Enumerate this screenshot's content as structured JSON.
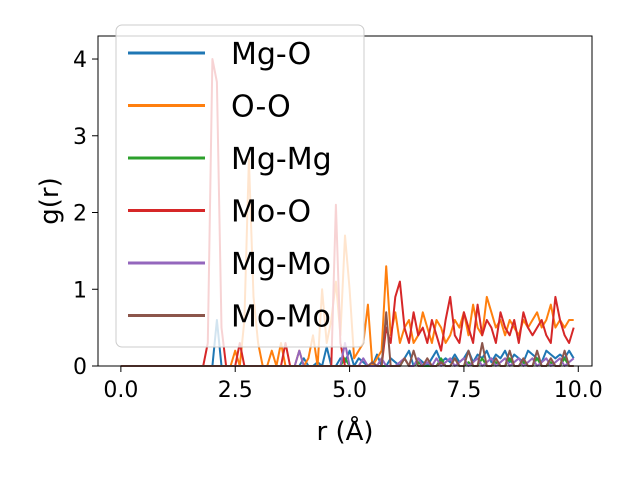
{
  "chart_data": {
    "type": "line",
    "title": "",
    "xlabel": "r (Å)",
    "ylabel": "g(r)",
    "xlim": [
      -0.5,
      10.3
    ],
    "ylim": [
      0,
      4.3
    ],
    "xticks": [
      0.0,
      2.5,
      5.0,
      7.5,
      10.0
    ],
    "xtick_labels": [
      "0.0",
      "2.5",
      "5.0",
      "7.5",
      "10.0"
    ],
    "yticks": [
      0,
      1,
      2,
      3,
      4
    ],
    "ytick_labels": [
      "0",
      "1",
      "2",
      "3",
      "4"
    ],
    "grid": false,
    "legend_position": "upper-left",
    "x": [
      0.0,
      0.1,
      0.2,
      0.3,
      0.4,
      0.5,
      0.6,
      0.7,
      0.8,
      0.9,
      1.0,
      1.1,
      1.2,
      1.3,
      1.4,
      1.5,
      1.6,
      1.7,
      1.8,
      1.9,
      2.0,
      2.1,
      2.2,
      2.3,
      2.4,
      2.5,
      2.6,
      2.7,
      2.8,
      2.9,
      3.0,
      3.1,
      3.2,
      3.3,
      3.4,
      3.5,
      3.6,
      3.7,
      3.8,
      3.9,
      4.0,
      4.1,
      4.2,
      4.3,
      4.4,
      4.5,
      4.6,
      4.7,
      4.8,
      4.9,
      5.0,
      5.1,
      5.2,
      5.3,
      5.4,
      5.5,
      5.6,
      5.7,
      5.8,
      5.9,
      6.0,
      6.1,
      6.2,
      6.3,
      6.4,
      6.5,
      6.6,
      6.7,
      6.8,
      6.9,
      7.0,
      7.1,
      7.2,
      7.3,
      7.4,
      7.5,
      7.6,
      7.7,
      7.8,
      7.9,
      8.0,
      8.1,
      8.2,
      8.3,
      8.4,
      8.5,
      8.6,
      8.7,
      8.8,
      8.9,
      9.0,
      9.1,
      9.2,
      9.3,
      9.4,
      9.5,
      9.6,
      9.7,
      9.8,
      9.9
    ],
    "series": [
      {
        "name": "Mg-O",
        "color": "#1f77b4",
        "values": [
          0,
          0,
          0,
          0,
          0,
          0,
          0,
          0,
          0,
          0,
          0,
          0,
          0,
          0,
          0,
          0,
          0,
          0,
          0,
          0,
          0,
          0.6,
          0,
          0,
          0,
          0,
          0,
          0,
          0,
          0,
          0,
          0,
          0,
          0,
          0,
          0,
          0,
          0,
          0,
          0,
          0.1,
          0,
          0,
          0.05,
          0,
          0.25,
          0,
          0,
          0.1,
          0.05,
          0.2,
          0,
          0.1,
          0.05,
          0,
          0,
          0.15,
          0,
          0,
          0.1,
          0.05,
          0,
          0.1,
          0.2,
          0,
          0.1,
          0.05,
          0,
          0.1,
          0.2,
          0.05,
          0.1,
          0.05,
          0.15,
          0.05,
          0.1,
          0.2,
          0.05,
          0.15,
          0.1,
          0.2,
          0.05,
          0.15,
          0.1,
          0.2,
          0.05,
          0.15,
          0.1,
          0.05,
          0.2,
          0.15,
          0.1,
          0.05,
          0.2,
          0.15,
          0.1,
          0.15,
          0.1,
          0.2,
          0.1
        ]
      },
      {
        "name": "O-O",
        "color": "#ff7f0e",
        "values": [
          0,
          0,
          0,
          0,
          0,
          0,
          0,
          0,
          0,
          0,
          0,
          0,
          0,
          0,
          0,
          0,
          0,
          0,
          0,
          0,
          0,
          0,
          0,
          0,
          0,
          0.2,
          0,
          0.6,
          2.7,
          0.9,
          0.3,
          0,
          0,
          0.2,
          0,
          0.3,
          0,
          0,
          0,
          0.2,
          0,
          0.1,
          0.4,
          0,
          1.0,
          0.3,
          0.6,
          1.1,
          0.4,
          1.7,
          1.0,
          0.1,
          0.2,
          0.3,
          0.8,
          0,
          0.1,
          0.2,
          1.3,
          0.4,
          0.7,
          0.3,
          0.5,
          0.6,
          0.3,
          0.4,
          0.7,
          0.5,
          0.3,
          0.6,
          0.5,
          0.3,
          0.4,
          0.6,
          0.5,
          0.7,
          0.4,
          0.8,
          0.5,
          0.4,
          0.9,
          0.7,
          0.5,
          0.6,
          0.4,
          0.6,
          0.5,
          0.4,
          0.6,
          0.5,
          0.6,
          0.7,
          0.5,
          0.6,
          0.8,
          0.5,
          0.6,
          0.5,
          0.6,
          0.6
        ]
      },
      {
        "name": "Mg-Mg",
        "color": "#2ca02c",
        "values": [
          0,
          0,
          0,
          0,
          0,
          0,
          0,
          0,
          0,
          0,
          0,
          0,
          0,
          0,
          0,
          0,
          0,
          0,
          0,
          0,
          0,
          0,
          0,
          0,
          0,
          0,
          0,
          0,
          0,
          0,
          0,
          0,
          0,
          0,
          0,
          0,
          0,
          0,
          0,
          0,
          0,
          0,
          0,
          0,
          0,
          0,
          0,
          0,
          0,
          0.1,
          0,
          0,
          0,
          0,
          0,
          0,
          0,
          0,
          0,
          0,
          0,
          0,
          0.1,
          0,
          0,
          0.05,
          0,
          0,
          0,
          0,
          0.1,
          0,
          0,
          0.1,
          0,
          0,
          0.05,
          0,
          0,
          0.1,
          0,
          0,
          0.05,
          0,
          0,
          0.1,
          0,
          0,
          0.05,
          0,
          0,
          0.1,
          0,
          0,
          0.05,
          0,
          0,
          0.1,
          0,
          0
        ]
      },
      {
        "name": "Mo-O",
        "color": "#d62728",
        "values": [
          0,
          0,
          0,
          0,
          0,
          0,
          0,
          0,
          0,
          0,
          0,
          0,
          0,
          0,
          0,
          0,
          0,
          0,
          0,
          0.3,
          4.0,
          3.7,
          0.5,
          0,
          0,
          0,
          0.3,
          0,
          0,
          0,
          0,
          0,
          0,
          0,
          0,
          0,
          0.3,
          0,
          0,
          0,
          0,
          0,
          0,
          0,
          0,
          0,
          0,
          2.1,
          0.3,
          0,
          0,
          0,
          0,
          0,
          0,
          0,
          0,
          0,
          0.5,
          0.3,
          0.9,
          1.1,
          0.5,
          0.3,
          0.7,
          0.4,
          0.5,
          0.3,
          0.6,
          0.4,
          0.2,
          0.6,
          0.9,
          0.4,
          0.3,
          0.7,
          0.5,
          0.3,
          0.8,
          0.4,
          0.6,
          0.5,
          0.3,
          0.7,
          0.5,
          0.4,
          0.6,
          0.3,
          0.7,
          0.5,
          0.4,
          0.5,
          0.6,
          0.4,
          0.3,
          0.9,
          0.6,
          0.4,
          0.3,
          0.5
        ]
      },
      {
        "name": "Mg-Mo",
        "color": "#9467bd",
        "values": [
          0,
          0,
          0,
          0,
          0,
          0,
          0,
          0,
          0,
          0,
          0,
          0,
          0,
          0,
          0,
          0,
          0,
          0,
          0,
          0,
          0,
          0,
          0,
          0,
          0,
          0,
          0,
          0,
          0,
          0,
          0,
          0,
          0,
          0,
          0,
          0,
          0,
          0,
          0,
          0.2,
          0,
          0,
          0,
          0,
          0,
          0,
          0,
          0,
          0,
          0.3,
          0,
          0,
          0,
          0.1,
          0,
          0,
          0,
          0.1,
          0,
          0,
          0,
          0.05,
          0.1,
          0,
          0,
          0.1,
          0,
          0.05,
          0,
          0.1,
          0,
          0.05,
          0.1,
          0,
          0.05,
          0.1,
          0,
          0.05,
          0.1,
          0,
          0.05,
          0.1,
          0,
          0.05,
          0.1,
          0,
          0.05,
          0.1,
          0,
          0.05,
          0.1,
          0,
          0.05,
          0.1,
          0,
          0.05,
          0.1,
          0,
          0.05,
          0.1
        ]
      },
      {
        "name": "Mo-Mo",
        "color": "#8c564b",
        "values": [
          0,
          0,
          0,
          0,
          0,
          0,
          0,
          0,
          0,
          0,
          0,
          0,
          0,
          0,
          0,
          0,
          0,
          0,
          0,
          0,
          0,
          0,
          0,
          0,
          0,
          0,
          0,
          0,
          0,
          0,
          0,
          0,
          0,
          0,
          0,
          0,
          0,
          0,
          0,
          0,
          0,
          0,
          0,
          0,
          0,
          0,
          0,
          0,
          0,
          0,
          0,
          0,
          0,
          0,
          0,
          0.05,
          0,
          0,
          0.7,
          0,
          0,
          0,
          0.1,
          0,
          0.2,
          0,
          0,
          0.1,
          0,
          0,
          0.05,
          0,
          0,
          0.1,
          0,
          0,
          0.2,
          0,
          0,
          0.3,
          0,
          0,
          0.1,
          0,
          0,
          0.2,
          0,
          0,
          0.1,
          0,
          0,
          0.2,
          0,
          0,
          0.1,
          0,
          0,
          0.2,
          0,
          0
        ]
      }
    ]
  }
}
